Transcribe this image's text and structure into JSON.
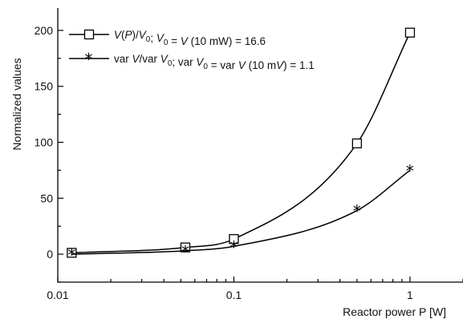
{
  "chart_data": {
    "type": "line",
    "x_scale": "log",
    "xlim": [
      0.01,
      2
    ],
    "ylim": [
      -25,
      220
    ],
    "xlabel": "Reactor power P [W]",
    "ylabel": "Normalized values",
    "x_ticks": [
      0.01,
      0.1,
      1
    ],
    "x_tick_labels": [
      "0.01",
      "0.1",
      "1"
    ],
    "y_ticks": [
      0,
      50,
      100,
      150,
      200
    ],
    "y_tick_labels": [
      "0",
      "50",
      "100",
      "150",
      "200"
    ],
    "grid": false,
    "legend_position": "top-left",
    "series": [
      {
        "name": "V(P)/V0; V0 = V (10 mW) = 16.6",
        "marker": "square",
        "x": [
          0.012,
          0.053,
          0.1,
          0.5,
          1.0
        ],
        "y": [
          1.2,
          6.0,
          13.5,
          99.0,
          198.0
        ]
      },
      {
        "name": "var V/var V0; var V0 = var V (10 mV) = 1.1",
        "marker": "star",
        "x": [
          0.012,
          0.053,
          0.1,
          0.5,
          1.0
        ],
        "y": [
          0.0,
          3.0,
          7.0,
          39.0,
          75.0
        ]
      }
    ]
  }
}
